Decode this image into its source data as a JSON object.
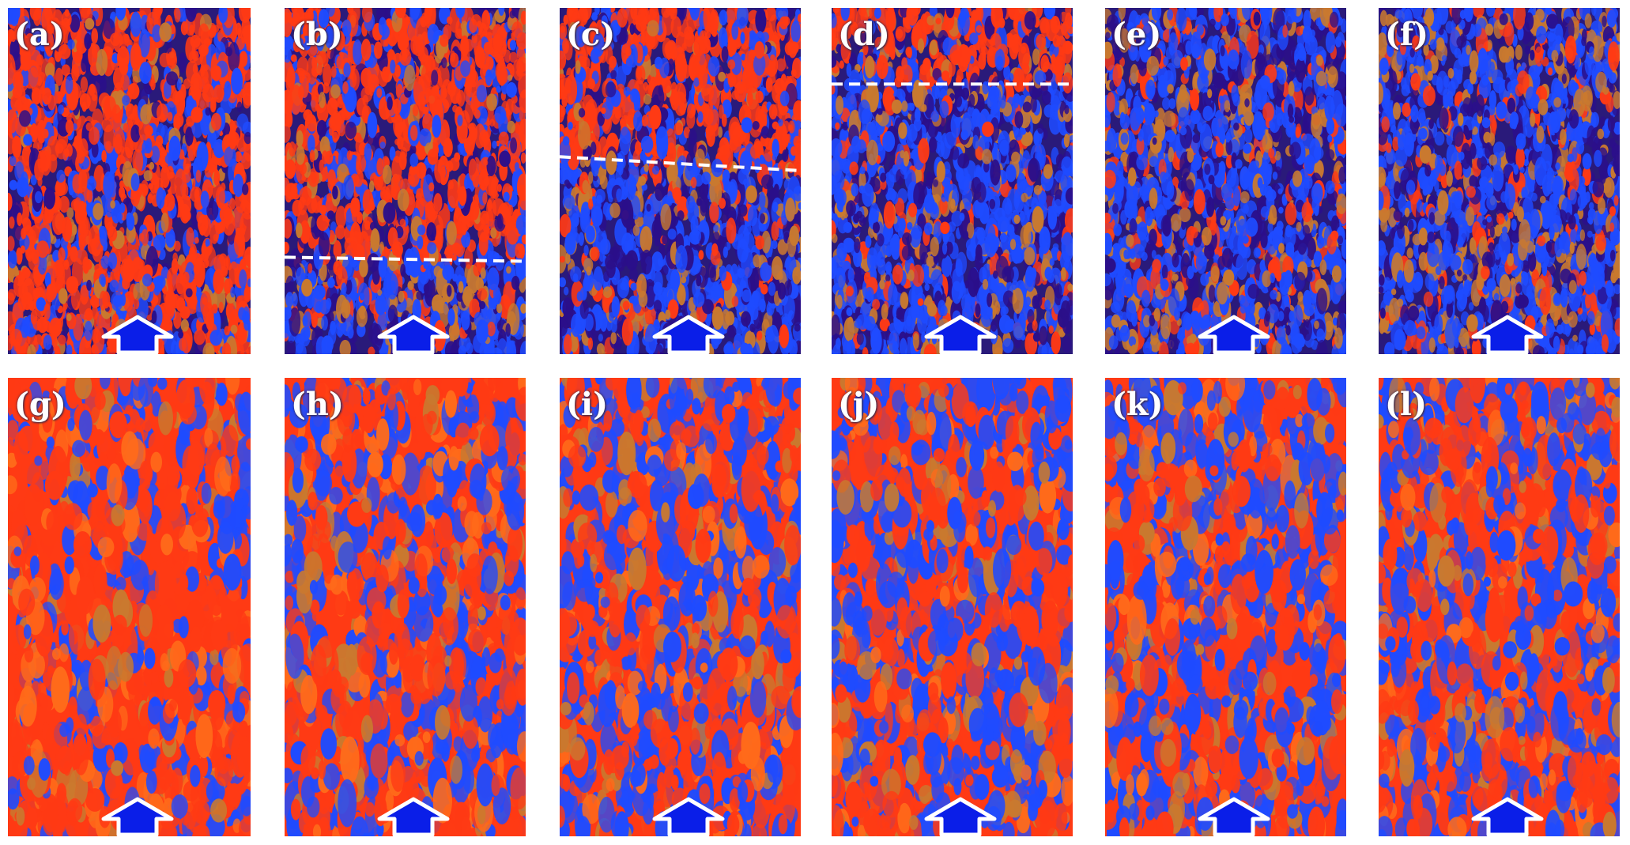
{
  "figure": {
    "rows": [
      {
        "palette": [
          "#2b0f8a",
          "#1f4bff",
          "#ff3a14",
          "#ff3a14",
          "#c9792f",
          "#8a3a8a"
        ],
        "base": "#2a1a7a",
        "panels": [
          {
            "label": "(a)",
            "red_fraction": 0.6,
            "divider": null
          },
          {
            "label": "(b)",
            "red_fraction": 0.55,
            "divider": "lower"
          },
          {
            "label": "(c)",
            "red_fraction": 0.45,
            "divider": "middle"
          },
          {
            "label": "(d)",
            "red_fraction": 0.3,
            "divider": "upper"
          },
          {
            "label": "(e)",
            "red_fraction": 0.14,
            "divider": null
          },
          {
            "label": "(f)",
            "red_fraction": 0.12,
            "divider": null
          }
        ]
      },
      {
        "palette": [
          "#ff3a14",
          "#ff3a14",
          "#1f4bff",
          "#c9792f",
          "#1f4bff",
          "#ff6a1a"
        ],
        "base": "#ff3a14",
        "panels": [
          {
            "label": "(g)",
            "red_fraction": 0.7,
            "divider": null
          },
          {
            "label": "(h)",
            "red_fraction": 0.55,
            "divider": null
          },
          {
            "label": "(i)",
            "red_fraction": 0.5,
            "divider": null
          },
          {
            "label": "(j)",
            "red_fraction": 0.5,
            "divider": null
          },
          {
            "label": "(k)",
            "red_fraction": 0.48,
            "divider": null
          },
          {
            "label": "(l)",
            "red_fraction": 0.48,
            "divider": null
          }
        ]
      }
    ],
    "arrow_icon": "up-arrow-icon",
    "arrow_fill": "#0a1ee8",
    "arrow_outline": "#ffffff",
    "divider_color": "#ffffff"
  }
}
